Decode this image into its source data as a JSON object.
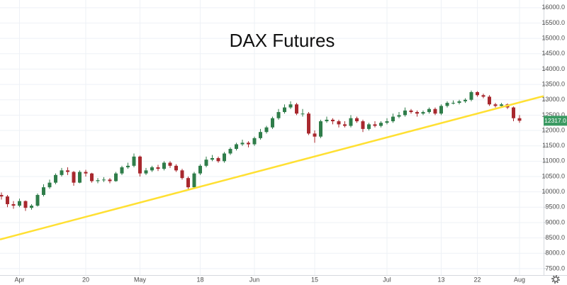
{
  "chart_data": {
    "type": "candlestick",
    "title": "DAX Futures",
    "categories": [
      null,
      null,
      null,
      "Apr",
      null,
      null,
      null,
      null,
      null,
      null,
      null,
      null,
      null,
      null,
      "20",
      null,
      null,
      null,
      null,
      null,
      null,
      null,
      null,
      "May",
      null,
      null,
      null,
      null,
      null,
      null,
      null,
      null,
      null,
      "18",
      null,
      null,
      null,
      null,
      null,
      null,
      null,
      null,
      "Jun",
      null,
      null,
      null,
      null,
      null,
      null,
      null,
      null,
      null,
      "15",
      null,
      null,
      null,
      null,
      null,
      null,
      null,
      null,
      null,
      null,
      null,
      "Jul",
      null,
      null,
      null,
      null,
      null,
      null,
      null,
      null,
      "13",
      null,
      null,
      null,
      null,
      null,
      "22",
      null,
      null,
      null,
      null,
      null,
      null,
      "Aug"
    ],
    "open": [
      9900,
      9850,
      9600,
      9550,
      9700,
      9480,
      9550,
      9900,
      10150,
      10300,
      10550,
      10700,
      10650,
      10300,
      10650,
      10600,
      10350,
      10380,
      10400,
      10350,
      10600,
      10800,
      10850,
      11150,
      10600,
      10700,
      10800,
      10750,
      10950,
      10850,
      10700,
      10450,
      10150,
      10600,
      10850,
      11050,
      11100,
      11000,
      11250,
      11400,
      11550,
      11600,
      11550,
      11750,
      11950,
      12100,
      12400,
      12600,
      12750,
      12850,
      12550,
      12550,
      11900,
      11800,
      12300,
      12350,
      12300,
      12200,
      12150,
      12400,
      12300,
      12050,
      12200,
      12150,
      12250,
      12300,
      12450,
      12500,
      12650,
      12600,
      12550,
      12600,
      12700,
      12550,
      12800,
      12900,
      12900,
      12950,
      13000,
      13250,
      13150,
      13100,
      12850,
      12800,
      12850,
      12750,
      12400
    ],
    "high": [
      9980,
      9900,
      9700,
      9780,
      9720,
      9600,
      9950,
      10250,
      10400,
      10600,
      10780,
      10800,
      10680,
      10700,
      10720,
      10620,
      10450,
      10480,
      10450,
      10650,
      10850,
      10950,
      11250,
      11180,
      10780,
      10850,
      10880,
      11000,
      11000,
      10900,
      10750,
      10500,
      10650,
      10900,
      11150,
      11200,
      11150,
      11300,
      11450,
      11600,
      11700,
      11650,
      11800,
      12050,
      12150,
      12450,
      12700,
      12850,
      12950,
      12900,
      12700,
      12600,
      12000,
      12350,
      12450,
      12400,
      12350,
      12300,
      12500,
      12450,
      12350,
      12250,
      12300,
      12300,
      12400,
      12550,
      12600,
      12750,
      12700,
      12650,
      12650,
      12750,
      12750,
      12850,
      12950,
      12980,
      13000,
      13050,
      13300,
      13280,
      13200,
      13150,
      12900,
      12900,
      12880,
      12780,
      12500
    ],
    "low": [
      9750,
      9500,
      9450,
      9500,
      9380,
      9420,
      9520,
      9850,
      10100,
      10250,
      10500,
      10550,
      10200,
      10280,
      10500,
      10300,
      10280,
      10320,
      10280,
      10330,
      10550,
      10750,
      10800,
      10500,
      10550,
      10650,
      10680,
      10700,
      10780,
      10650,
      10400,
      10050,
      10100,
      10550,
      10800,
      11000,
      10950,
      10950,
      11200,
      11350,
      11500,
      11450,
      11500,
      11700,
      11900,
      12050,
      12350,
      12550,
      12700,
      12500,
      12450,
      11850,
      11600,
      11750,
      12250,
      12200,
      12100,
      12100,
      12100,
      12250,
      11950,
      12000,
      12100,
      12100,
      12200,
      12250,
      12400,
      12450,
      12550,
      12450,
      12500,
      12550,
      12500,
      12500,
      12750,
      12850,
      12850,
      12900,
      12950,
      13100,
      13050,
      12800,
      12750,
      12750,
      12700,
      12300,
      12250
    ],
    "close": [
      9850,
      9600,
      9550,
      9700,
      9480,
      9550,
      9900,
      10150,
      10300,
      10550,
      10700,
      10650,
      10300,
      10650,
      10600,
      10350,
      10380,
      10400,
      10350,
      10600,
      10800,
      10850,
      11150,
      10600,
      10700,
      10800,
      10750,
      10950,
      10850,
      10700,
      10450,
      10150,
      10600,
      10850,
      11050,
      11100,
      11000,
      11250,
      11400,
      11550,
      11600,
      11550,
      11750,
      11950,
      12100,
      12400,
      12600,
      12750,
      12850,
      12550,
      12550,
      11900,
      11800,
      12300,
      12350,
      12300,
      12200,
      12150,
      12400,
      12300,
      12050,
      12200,
      12150,
      12250,
      12300,
      12450,
      12500,
      12650,
      12600,
      12550,
      12600,
      12700,
      12550,
      12800,
      12900,
      12900,
      12950,
      13000,
      13250,
      13150,
      13100,
      12850,
      12800,
      12850,
      12750,
      12400,
      12317
    ],
    "up_color": "#2f7d4a",
    "down_color": "#a8282e",
    "trendline": {
      "values": [
        8450,
        13120
      ],
      "color": "#ffe033"
    },
    "last_price": {
      "value": 12317,
      "label": "12317.0",
      "color": "#3a9a62"
    },
    "ylim": [
      7290,
      16250
    ],
    "yticks": [
      {
        "value": 7500,
        "label": "7500.0"
      },
      {
        "value": 8000,
        "label": "8000.0"
      },
      {
        "value": 8500,
        "label": "8500.0"
      },
      {
        "value": 9000,
        "label": "9000.0"
      },
      {
        "value": 9500,
        "label": "9500.0"
      },
      {
        "value": 10000,
        "label": "10000.0"
      },
      {
        "value": 10500,
        "label": "10500.0"
      },
      {
        "value": 11000,
        "label": "11000.0"
      },
      {
        "value": 11500,
        "label": "11500.0"
      },
      {
        "value": 12000,
        "label": "12000.0"
      },
      {
        "value": 12500,
        "label": "12500.0"
      },
      {
        "value": 13000,
        "label": "13000.0"
      },
      {
        "value": 13500,
        "label": "13500.0"
      },
      {
        "value": 14000,
        "label": "14000.0"
      },
      {
        "value": 14500,
        "label": "14500.0"
      },
      {
        "value": 15000,
        "label": "15000.0"
      },
      {
        "value": 15500,
        "label": "15500.0"
      },
      {
        "value": 16000,
        "label": "16000.0"
      }
    ],
    "grid": true
  }
}
